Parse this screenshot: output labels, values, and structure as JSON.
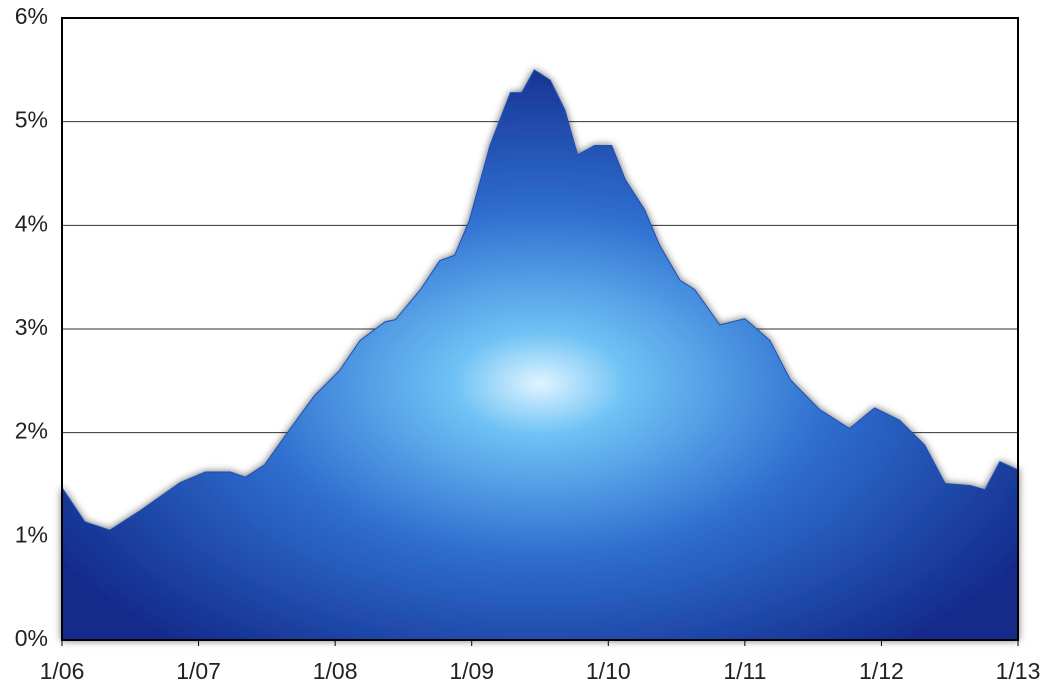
{
  "chart_data": {
    "type": "area",
    "x": [
      0,
      2,
      4.2,
      6.9,
      10.4,
      12.6,
      14.8,
      16.1,
      17.8,
      20,
      22.2,
      24.4,
      26.2,
      28.4,
      29.3,
      31.5,
      33.2,
      34.5,
      35.8,
      37.6,
      39.4,
      40.4,
      41.5,
      42.9,
      44.2,
      45.3,
      46.8,
      48.3,
      49.5,
      51.2,
      52.5,
      54.3,
      55.6,
      57.8,
      60,
      62.2,
      64,
      66.6,
      69.2,
      71.4,
      73.6,
      75.8,
      77.6,
      79.8,
      81.1,
      82.4,
      84
    ],
    "values": [
      1.47,
      1.14,
      1.06,
      1.25,
      1.52,
      1.62,
      1.62,
      1.57,
      1.69,
      2.03,
      2.36,
      2.6,
      2.89,
      3.07,
      3.09,
      3.38,
      3.66,
      3.71,
      4.05,
      4.77,
      5.28,
      5.28,
      5.5,
      5.4,
      5.11,
      4.68,
      4.77,
      4.77,
      4.44,
      4.15,
      3.81,
      3.47,
      3.38,
      3.04,
      3.1,
      2.89,
      2.51,
      2.22,
      2.04,
      2.24,
      2.12,
      1.88,
      1.51,
      1.49,
      1.45,
      1.72,
      1.64
    ],
    "color": "#1f4fb0",
    "xlim": [
      0,
      84
    ],
    "xticks": [
      {
        "value": 0,
        "label": "1/06"
      },
      {
        "value": 12,
        "label": "1/07"
      },
      {
        "value": 24,
        "label": "1/08"
      },
      {
        "value": 36,
        "label": "1/09"
      },
      {
        "value": 48,
        "label": "1/10"
      },
      {
        "value": 60,
        "label": "1/11"
      },
      {
        "value": 72,
        "label": "1/12"
      },
      {
        "value": 84,
        "label": "1/13"
      }
    ],
    "ylim": [
      0,
      6
    ],
    "yticks": [
      {
        "value": 0,
        "label": "0%"
      },
      {
        "value": 1,
        "label": "1%"
      },
      {
        "value": 2,
        "label": "2%"
      },
      {
        "value": 3,
        "label": "3%"
      },
      {
        "value": 4,
        "label": "4%"
      },
      {
        "value": 5,
        "label": "5%"
      },
      {
        "value": 6,
        "label": "6%"
      }
    ],
    "grid": true
  }
}
